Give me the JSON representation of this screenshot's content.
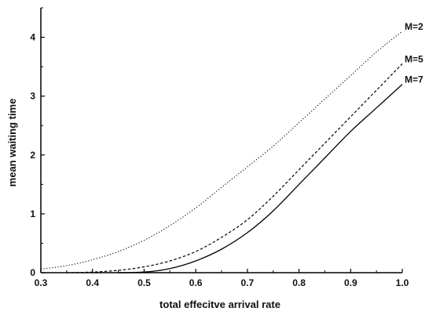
{
  "chart_data": {
    "type": "line",
    "title": "",
    "xlabel": "total effecitve arrival rate",
    "ylabel": "mean waiting time",
    "xlim": [
      0.3,
      1.0
    ],
    "ylim": [
      0,
      4.5
    ],
    "xticks": [
      0.3,
      0.4,
      0.5,
      0.6,
      0.7,
      0.8,
      0.9,
      1.0
    ],
    "xtick_labels": [
      "0.3",
      "0.4",
      "0.5",
      "0.6",
      "0.7",
      "0.8",
      "0.9",
      "1.0"
    ],
    "yticks": [
      0,
      1,
      2,
      3,
      4
    ],
    "ytick_labels": [
      "0",
      "1",
      "2",
      "3",
      "4"
    ],
    "grid": false,
    "legend": "labels at line ends (right)",
    "series": [
      {
        "name": "M=2",
        "style": "dotted",
        "color": "#000000",
        "x": [
          0.3,
          0.35,
          0.4,
          0.45,
          0.5,
          0.55,
          0.6,
          0.65,
          0.7,
          0.75,
          0.8,
          0.85,
          0.9,
          0.95,
          1.0
        ],
        "y": [
          0.06,
          0.12,
          0.22,
          0.36,
          0.55,
          0.8,
          1.1,
          1.45,
          1.8,
          2.15,
          2.55,
          2.95,
          3.35,
          3.75,
          4.1
        ]
      },
      {
        "name": "M=5",
        "style": "dashed",
        "color": "#000000",
        "x": [
          0.35,
          0.4,
          0.45,
          0.5,
          0.55,
          0.6,
          0.65,
          0.7,
          0.75,
          0.8,
          0.85,
          0.9,
          0.95,
          1.0
        ],
        "y": [
          0.0,
          0.01,
          0.04,
          0.1,
          0.2,
          0.36,
          0.6,
          0.9,
          1.3,
          1.75,
          2.2,
          2.65,
          3.1,
          3.55
        ]
      },
      {
        "name": "M=7",
        "style": "solid",
        "color": "#000000",
        "x": [
          0.45,
          0.5,
          0.55,
          0.6,
          0.65,
          0.7,
          0.75,
          0.8,
          0.85,
          0.9,
          0.95,
          1.0
        ],
        "y": [
          0.0,
          0.01,
          0.07,
          0.2,
          0.4,
          0.68,
          1.05,
          1.5,
          1.95,
          2.4,
          2.8,
          3.2
        ]
      }
    ]
  }
}
